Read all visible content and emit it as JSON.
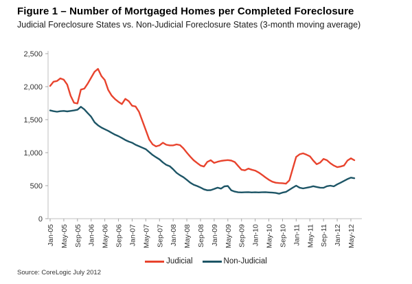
{
  "chart_data": {
    "type": "line",
    "title": "Figure 1 – Number of Mortgaged Homes per Completed Foreclosure",
    "subtitle": "Judicial Foreclosure States vs. Non-Judicial Foreclosure States (3-month moving average)",
    "x_start": "Jan-05",
    "x_end": "Jun-12",
    "x_tick_labels": [
      "Jan-05",
      "May-05",
      "Sep-05",
      "Jan-06",
      "May-06",
      "Sep-06",
      "Jan-07",
      "May-07",
      "Sep-07",
      "Jan-08",
      "May-08",
      "Sep-08",
      "Jan-09",
      "May-09",
      "Sep-09",
      "Jan-10",
      "May-10",
      "Sep-10",
      "Jan-11",
      "May-11",
      "Sep-11",
      "Jan-12",
      "May-12"
    ],
    "x_ticks_every_n_months": 4,
    "ylim": [
      0,
      2500
    ],
    "y_tick_labels": [
      "0",
      "500",
      "1,000",
      "1,500",
      "2,000",
      "2,500"
    ],
    "grid": false,
    "legend_position": "bottom-center",
    "series": [
      {
        "name": "Judicial",
        "color": "#e8432d",
        "values": [
          2010,
          2075,
          2085,
          2125,
          2105,
          2030,
          1860,
          1755,
          1745,
          1955,
          1970,
          2045,
          2135,
          2225,
          2270,
          2160,
          2100,
          1950,
          1865,
          1810,
          1770,
          1735,
          1815,
          1780,
          1710,
          1700,
          1620,
          1480,
          1340,
          1200,
          1125,
          1095,
          1110,
          1150,
          1120,
          1110,
          1110,
          1125,
          1115,
          1065,
          1000,
          940,
          885,
          845,
          805,
          790,
          860,
          885,
          845,
          862,
          875,
          882,
          888,
          880,
          858,
          800,
          742,
          732,
          758,
          742,
          728,
          700,
          665,
          625,
          590,
          560,
          545,
          540,
          538,
          530,
          580,
          760,
          935,
          975,
          990,
          970,
          945,
          880,
          825,
          850,
          905,
          885,
          840,
          805,
          780,
          790,
          805,
          880,
          915,
          885
        ]
      },
      {
        "name": "Non-Judicial",
        "color": "#1d5566",
        "values": [
          1640,
          1628,
          1620,
          1628,
          1632,
          1625,
          1632,
          1640,
          1650,
          1695,
          1655,
          1600,
          1545,
          1460,
          1415,
          1380,
          1355,
          1330,
          1300,
          1272,
          1250,
          1222,
          1192,
          1168,
          1150,
          1120,
          1098,
          1075,
          1052,
          1008,
          965,
          930,
          898,
          852,
          815,
          795,
          748,
          695,
          658,
          628,
          588,
          545,
          515,
          495,
          472,
          445,
          430,
          432,
          450,
          470,
          455,
          490,
          495,
          430,
          410,
          400,
          398,
          400,
          402,
          398,
          400,
          398,
          400,
          402,
          398,
          395,
          390,
          378,
          395,
          405,
          438,
          470,
          500,
          470,
          458,
          468,
          478,
          492,
          480,
          470,
          468,
          492,
          500,
          490,
          520,
          545,
          572,
          600,
          622,
          612
        ]
      }
    ],
    "source": "Source: CoreLogic July 2012"
  }
}
